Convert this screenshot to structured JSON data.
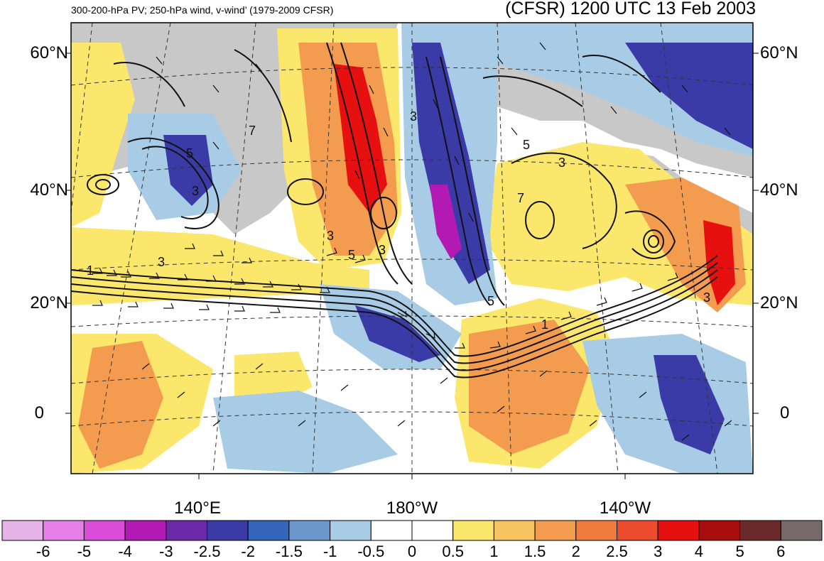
{
  "header": {
    "subtitle": "300-200-hPa PV; 250-hPa wind, v-wind’ (1979-2009 CFSR)",
    "title": "(CFSR) 1200 UTC 13 Feb 2003"
  },
  "axes": {
    "lat_labels": [
      "60°N",
      "40°N",
      "20°N",
      "0"
    ],
    "lon_labels": [
      "140°E",
      "180°W",
      "140°W"
    ]
  },
  "contour_labels": [
    "5",
    "3",
    "3",
    "7",
    "5",
    "3",
    "5",
    "3",
    "7",
    "1",
    "3",
    "3",
    "1",
    "3",
    "5"
  ],
  "colorbar": {
    "labels": [
      "-6",
      "-5",
      "-4",
      "-3",
      "-2.5",
      "-2",
      "-1.5",
      "-1",
      "-0.5",
      "0",
      "0.5",
      "1",
      "1.5",
      "2",
      "2.5",
      "3",
      "4",
      "5",
      "6"
    ],
    "colors": [
      "#e6b3e6",
      "#e680e6",
      "#d94dd9",
      "#b31ab3",
      "#6b2ba8",
      "#3b3ba8",
      "#3366bb",
      "#6b99cc",
      "#a8cce6",
      "#ffffff",
      "#ffffff",
      "#fbe76b",
      "#f5c460",
      "#f39c4f",
      "#f07b3f",
      "#ed4b2d",
      "#e61010",
      "#a80d0d",
      "#6b2b2b",
      "#786a6a"
    ]
  },
  "colors": {
    "land": "#c8c8c8",
    "positive_anomaly": "#f39c4f",
    "negative_anomaly": "#3b3ba8",
    "contour": "#111111"
  }
}
